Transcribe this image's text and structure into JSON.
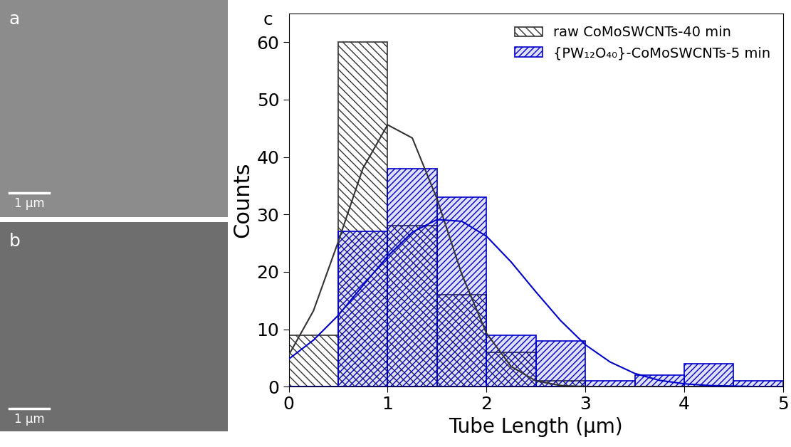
{
  "images": [
    {
      "label": "a",
      "scale_bar": "1 µm"
    },
    {
      "label": "b",
      "scale_bar": "1 µm"
    }
  ],
  "chart_data": {
    "type": "histogram",
    "panel_label": "c",
    "x_label": "Tube Length (µm)",
    "y_label": "Counts",
    "bins": [
      0,
      0.5,
      1,
      1.5,
      2,
      2.5,
      3,
      3.5,
      4,
      4.5,
      5
    ],
    "series": [
      {
        "name": "raw CoMoSWCNTs-40 min",
        "color": "#333333",
        "values": [
          9,
          60,
          28,
          16,
          6,
          1,
          0,
          0,
          0,
          0
        ],
        "fit": {
          "x": [
            0,
            0.25,
            0.5,
            0.75,
            1,
            1.25,
            1.5,
            1.75,
            2,
            2.25,
            2.5,
            2.75,
            3,
            3.25,
            3.5,
            3.75,
            4,
            4.25,
            4.5,
            4.75,
            5
          ],
          "values": [
            5.5,
            13.2,
            25.2,
            38.0,
            45.6,
            43.3,
            32.7,
            19.6,
            9.3,
            3.5,
            1.0,
            0.2,
            0,
            0,
            0,
            0,
            0,
            0,
            0,
            0,
            0
          ]
        }
      },
      {
        "name": "{PW₁₂O₄₀}-CoMoSWCNTs-5 min",
        "color": "#0000cc",
        "values": [
          0,
          27,
          38,
          33,
          9,
          8,
          1,
          2,
          4,
          1
        ],
        "fit": {
          "x": [
            0,
            0.25,
            0.5,
            0.75,
            1,
            1.25,
            1.5,
            1.75,
            2,
            2.25,
            2.5,
            2.75,
            3,
            3.25,
            3.5,
            3.75,
            4,
            4.25,
            4.5,
            4.75,
            5
          ],
          "values": [
            4.8,
            8.1,
            12.4,
            17.6,
            22.7,
            26.9,
            29.1,
            28.8,
            26.2,
            21.7,
            16.5,
            11.5,
            7.3,
            4.3,
            2.3,
            1.1,
            0.5,
            0.2,
            0.1,
            0,
            0
          ]
        }
      }
    ],
    "xlim": [
      0,
      5
    ],
    "ylim": [
      0,
      65
    ],
    "xticks": [
      0,
      1,
      2,
      3,
      4,
      5
    ],
    "yticks": [
      0,
      10,
      20,
      30,
      40,
      50,
      60
    ],
    "legend": "upper right"
  }
}
